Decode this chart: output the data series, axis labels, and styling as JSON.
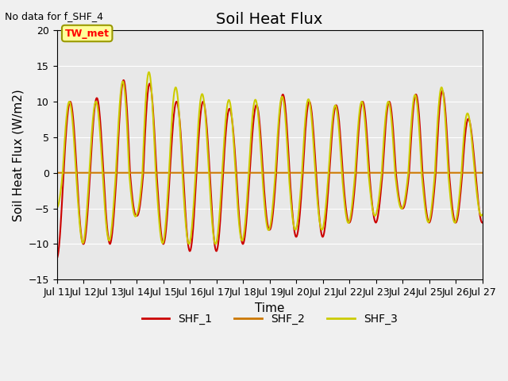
{
  "title": "Soil Heat Flux",
  "top_left_text": "No data for f_SHF_4",
  "ylabel": "Soil Heat Flux (W/m2)",
  "xlabel": "Time",
  "tw_met_label": "TW_met",
  "ylim": [
    -15,
    20
  ],
  "xlim_days": [
    0,
    16
  ],
  "x_tick_labels": [
    "Jul 11",
    "Jul 12",
    "Jul 13",
    "Jul 14",
    "Jul 15",
    "Jul 16",
    "Jul 17",
    "Jul 18",
    "Jul 19",
    "Jul 20",
    "Jul 21",
    "Jul 22",
    "Jul 23",
    "Jul 24",
    "Jul 25",
    "Jul 26",
    "Jul 27"
  ],
  "x_tick_positions": [
    0,
    1,
    2,
    3,
    4,
    5,
    6,
    7,
    8,
    9,
    10,
    11,
    12,
    13,
    14,
    15,
    16
  ],
  "colors": {
    "SHF_1": "#cc0000",
    "SHF_2": "#cc7700",
    "SHF_3": "#cccc00",
    "background": "#e8e8e8",
    "tw_met_fill": "#ffff99",
    "tw_met_edge": "#999900"
  },
  "legend_entries": [
    "SHF_1",
    "SHF_2",
    "SHF_3"
  ],
  "title_fontsize": 14,
  "label_fontsize": 11,
  "tick_fontsize": 9
}
